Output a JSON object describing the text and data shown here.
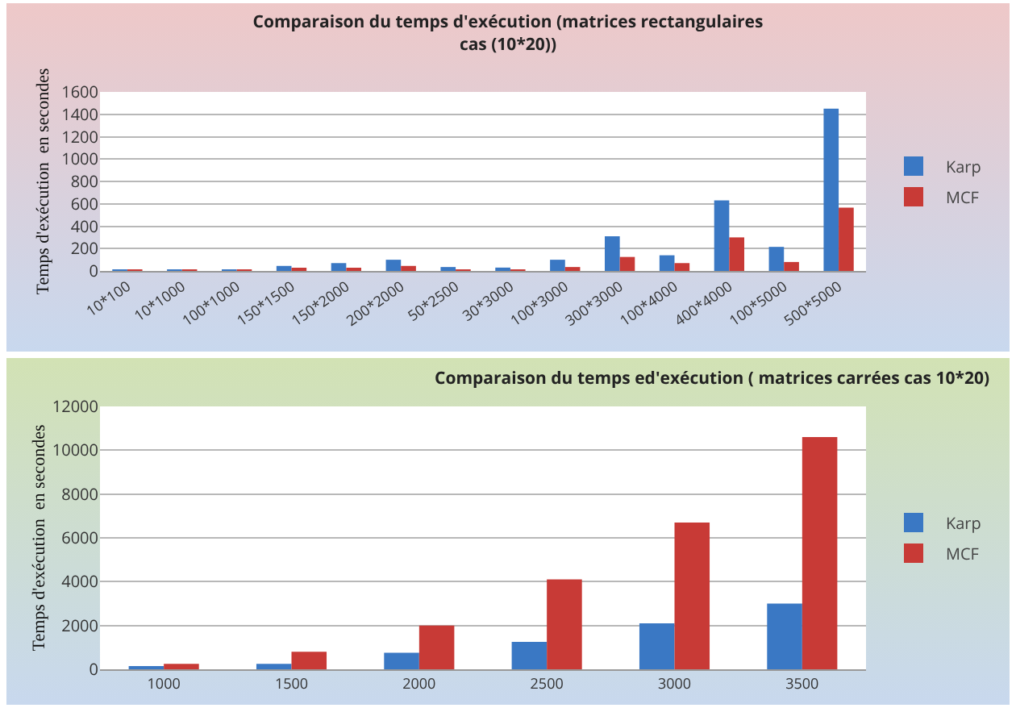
{
  "chart_data": [
    {
      "type": "bar",
      "title": "Comparaison du temps d'exécution (matrices rectangulaires cas (10*20))",
      "ylabel": "Temps d'exécution  en secondes",
      "categories": [
        "10*100",
        "10*1000",
        "100*1000",
        "150*1500",
        "150*2000",
        "200*2000",
        "50*2500",
        "30*3000",
        "100*3000",
        "300*3000",
        "100*4000",
        "400*4000",
        "100*5000",
        "500*5000"
      ],
      "series": [
        {
          "name": "Karp",
          "color": "#3a78c4",
          "values": [
            5,
            5,
            8,
            45,
            70,
            100,
            35,
            30,
            100,
            310,
            140,
            630,
            215,
            1450
          ]
        },
        {
          "name": "MCF",
          "color": "#c83a36",
          "values": [
            5,
            5,
            5,
            15,
            25,
            45,
            10,
            10,
            35,
            125,
            70,
            300,
            80,
            565
          ]
        }
      ],
      "ylim": [
        0,
        1600
      ],
      "yticks": [
        0,
        200,
        400,
        600,
        800,
        1000,
        1200,
        1400,
        1600
      ],
      "grid": "y",
      "legend": "right"
    },
    {
      "type": "bar",
      "title": "Comparaison du temps ed'exécution ( matrices carrées cas 10*20)",
      "ylabel": "Temps d'exécution  en secondes",
      "categories": [
        "1000",
        "1500",
        "2000",
        "2500",
        "3000",
        "3500"
      ],
      "series": [
        {
          "name": "Karp",
          "color": "#3a78c4",
          "values": [
            80,
            250,
            750,
            1250,
            2100,
            3000
          ]
        },
        {
          "name": "MCF",
          "color": "#c83a36",
          "values": [
            250,
            800,
            2000,
            4100,
            6700,
            10600
          ]
        }
      ],
      "ylim": [
        0,
        12000
      ],
      "yticks": [
        0,
        2000,
        4000,
        6000,
        8000,
        10000,
        12000
      ],
      "grid": "y",
      "legend": "right"
    }
  ]
}
